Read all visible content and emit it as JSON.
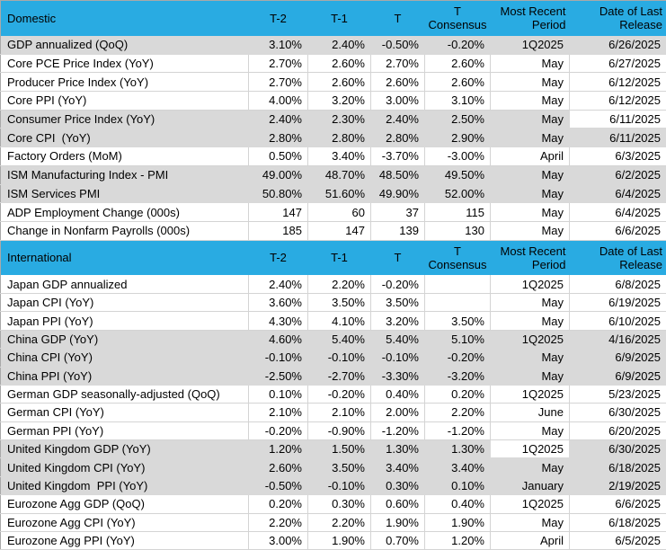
{
  "colors": {
    "header_bg": "#29ABE2",
    "shaded_row_bg": "#D9D9D9",
    "grid_line": "#D4D4D4",
    "text": "#000000"
  },
  "headers": [
    {
      "key": "t2",
      "lines": [
        "T-2"
      ],
      "align": "center"
    },
    {
      "key": "t1",
      "lines": [
        "T-1"
      ],
      "align": "center"
    },
    {
      "key": "t",
      "lines": [
        "T"
      ],
      "align": "center"
    },
    {
      "key": "consensus",
      "lines": [
        "T",
        "Consensus"
      ],
      "align": "center"
    },
    {
      "key": "period",
      "lines": [
        "Most Recent",
        "Period"
      ],
      "align": "right"
    },
    {
      "key": "date",
      "lines": [
        "Date of Last",
        "Release"
      ],
      "align": "right"
    }
  ],
  "chart_data": [
    {
      "type": "table",
      "title": "Domestic",
      "columns": [
        "",
        "T-2",
        "T-1",
        "T",
        "T Consensus",
        "Most Recent Period",
        "Date of Last Release"
      ],
      "rows": [
        {
          "label": "GDP annualized (QoQ)",
          "t2": "3.10%",
          "t1": "2.40%",
          "t": "-0.50%",
          "consensus": "-0.20%",
          "period": "1Q2025",
          "date": "6/26/2025",
          "shaded": true,
          "white_cells": []
        },
        {
          "label": "Core PCE Price Index (YoY)",
          "t2": "2.70%",
          "t1": "2.60%",
          "t": "2.70%",
          "consensus": "2.60%",
          "period": "May",
          "date": "6/27/2025",
          "shaded": false,
          "white_cells": []
        },
        {
          "label": "Producer Price Index (YoY)",
          "t2": "2.70%",
          "t1": "2.60%",
          "t": "2.60%",
          "consensus": "2.60%",
          "period": "May",
          "date": "6/12/2025",
          "shaded": false,
          "white_cells": []
        },
        {
          "label": "Core PPI (YoY)",
          "t2": "4.00%",
          "t1": "3.20%",
          "t": "3.00%",
          "consensus": "3.10%",
          "period": "May",
          "date": "6/12/2025",
          "shaded": false,
          "white_cells": []
        },
        {
          "label": "Consumer Price Index (YoY)",
          "t2": "2.40%",
          "t1": "2.30%",
          "t": "2.40%",
          "consensus": "2.50%",
          "period": "May",
          "date": "6/11/2025",
          "shaded": true,
          "white_cells": [
            "date"
          ]
        },
        {
          "label": "Core CPI  (YoY)",
          "t2": "2.80%",
          "t1": "2.80%",
          "t": "2.80%",
          "consensus": "2.90%",
          "period": "May",
          "date": "6/11/2025",
          "shaded": true,
          "white_cells": []
        },
        {
          "label": "Factory Orders (MoM)",
          "t2": "0.50%",
          "t1": "3.40%",
          "t": "-3.70%",
          "consensus": "-3.00%",
          "period": "April",
          "date": "6/3/2025",
          "shaded": false,
          "white_cells": []
        },
        {
          "label": "ISM Manufacturing Index - PMI",
          "t2": "49.00%",
          "t1": "48.70%",
          "t": "48.50%",
          "consensus": "49.50%",
          "period": "May",
          "date": "6/2/2025",
          "shaded": true,
          "white_cells": []
        },
        {
          "label": "ISM Services PMI",
          "t2": "50.80%",
          "t1": "51.60%",
          "t": "49.90%",
          "consensus": "52.00%",
          "period": "May",
          "date": "6/4/2025",
          "shaded": true,
          "white_cells": []
        },
        {
          "label": "ADP Employment Change (000s)",
          "t2": "147",
          "t1": "60",
          "t": "37",
          "consensus": "115",
          "period": "May",
          "date": "6/4/2025",
          "shaded": false,
          "white_cells": []
        },
        {
          "label": "Change in Nonfarm Payrolls (000s)",
          "t2": "185",
          "t1": "147",
          "t": "139",
          "consensus": "130",
          "period": "May",
          "date": "6/6/2025",
          "shaded": false,
          "white_cells": []
        }
      ]
    },
    {
      "type": "table",
      "title": "International",
      "columns": [
        "",
        "T-2",
        "T-1",
        "T",
        "T Consensus",
        "Most Recent Period",
        "Date of Last Release"
      ],
      "rows": [
        {
          "label": "Japan GDP annualized",
          "t2": "2.40%",
          "t1": "2.20%",
          "t": "-0.20%",
          "consensus": "",
          "period": "1Q2025",
          "date": "6/8/2025",
          "shaded": false,
          "white_cells": []
        },
        {
          "label": "Japan CPI (YoY)",
          "t2": "3.60%",
          "t1": "3.50%",
          "t": "3.50%",
          "consensus": "",
          "period": "May",
          "date": "6/19/2025",
          "shaded": false,
          "white_cells": []
        },
        {
          "label": "Japan PPI (YoY)",
          "t2": "4.30%",
          "t1": "4.10%",
          "t": "3.20%",
          "consensus": "3.50%",
          "period": "May",
          "date": "6/10/2025",
          "shaded": false,
          "white_cells": []
        },
        {
          "label": "China GDP (YoY)",
          "t2": "4.60%",
          "t1": "5.40%",
          "t": "5.40%",
          "consensus": "5.10%",
          "period": "1Q2025",
          "date": "4/16/2025",
          "shaded": true,
          "white_cells": []
        },
        {
          "label": "China CPI (YoY)",
          "t2": "-0.10%",
          "t1": "-0.10%",
          "t": "-0.10%",
          "consensus": "-0.20%",
          "period": "May",
          "date": "6/9/2025",
          "shaded": true,
          "white_cells": []
        },
        {
          "label": "China PPI (YoY)",
          "t2": "-2.50%",
          "t1": "-2.70%",
          "t": "-3.30%",
          "consensus": "-3.20%",
          "period": "May",
          "date": "6/9/2025",
          "shaded": true,
          "white_cells": []
        },
        {
          "label": "German GDP seasonally-adjusted (QoQ)",
          "t2": "0.10%",
          "t1": "-0.20%",
          "t": "0.40%",
          "consensus": "0.20%",
          "period": "1Q2025",
          "date": "5/23/2025",
          "shaded": false,
          "white_cells": []
        },
        {
          "label": "German CPI (YoY)",
          "t2": "2.10%",
          "t1": "2.10%",
          "t": "2.00%",
          "consensus": "2.20%",
          "period": "June",
          "date": "6/30/2025",
          "shaded": false,
          "white_cells": []
        },
        {
          "label": "German PPI (YoY)",
          "t2": "-0.20%",
          "t1": "-0.90%",
          "t": "-1.20%",
          "consensus": "-1.20%",
          "period": "May",
          "date": "6/20/2025",
          "shaded": false,
          "white_cells": []
        },
        {
          "label": "United Kingdom GDP (YoY)",
          "t2": "1.20%",
          "t1": "1.50%",
          "t": "1.30%",
          "consensus": "1.30%",
          "period": "1Q2025",
          "date": "6/30/2025",
          "shaded": true,
          "white_cells": [
            "period"
          ]
        },
        {
          "label": "United Kingdom CPI (YoY)",
          "t2": "2.60%",
          "t1": "3.50%",
          "t": "3.40%",
          "consensus": "3.40%",
          "period": "May",
          "date": "6/18/2025",
          "shaded": true,
          "white_cells": []
        },
        {
          "label": "United Kingdom  PPI (YoY)",
          "t2": "-0.50%",
          "t1": "-0.10%",
          "t": "0.30%",
          "consensus": "0.10%",
          "period": "January",
          "date": "2/19/2025",
          "shaded": true,
          "white_cells": []
        },
        {
          "label": "Eurozone Agg GDP (QoQ)",
          "t2": "0.20%",
          "t1": "0.30%",
          "t": "0.60%",
          "consensus": "0.40%",
          "period": "1Q2025",
          "date": "6/6/2025",
          "shaded": false,
          "white_cells": []
        },
        {
          "label": "Eurozone Agg CPI (YoY)",
          "t2": "2.20%",
          "t1": "2.20%",
          "t": "1.90%",
          "consensus": "1.90%",
          "period": "May",
          "date": "6/18/2025",
          "shaded": false,
          "white_cells": []
        },
        {
          "label": "Eurozone Agg PPI (YoY)",
          "t2": "3.00%",
          "t1": "1.90%",
          "t": "0.70%",
          "consensus": "1.20%",
          "period": "April",
          "date": "6/5/2025",
          "shaded": false,
          "white_cells": []
        }
      ]
    }
  ]
}
